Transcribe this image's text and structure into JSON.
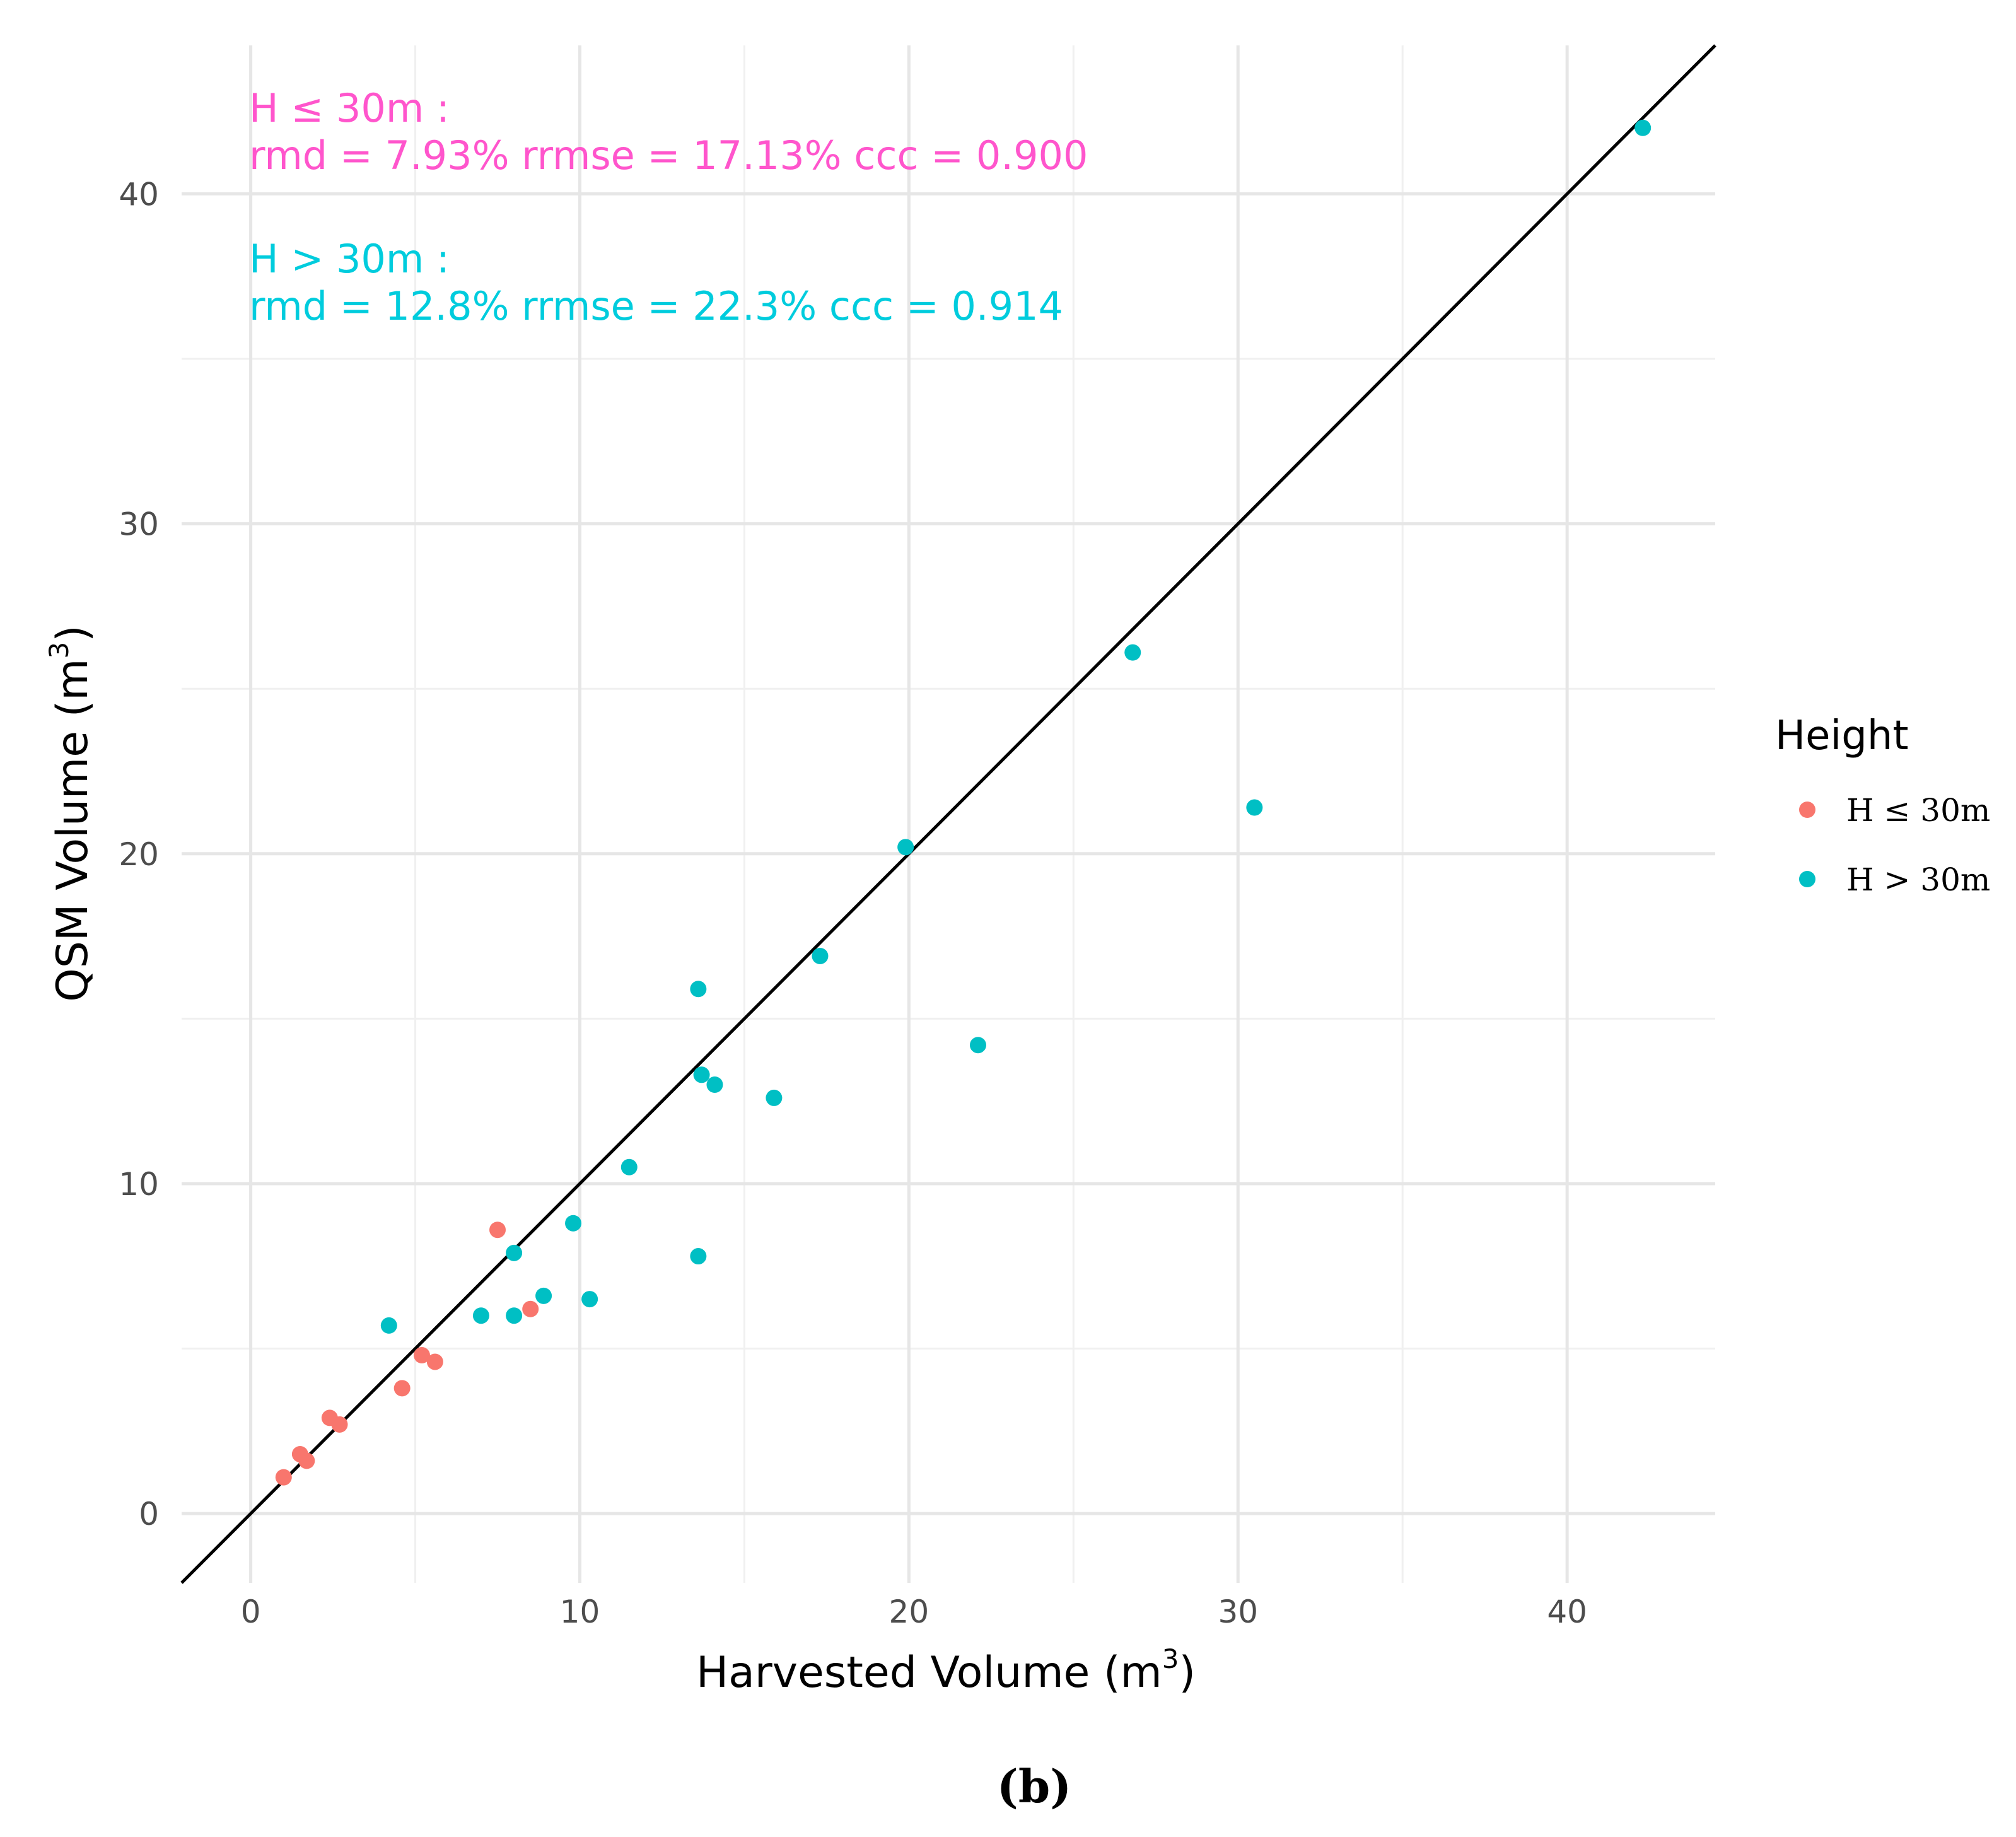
{
  "chart_data": {
    "type": "scatter",
    "title": "",
    "xlabel": "Harvested Volume (m3)",
    "xlabel_main": "Harvested Volume (m",
    "xlabel_close": ")",
    "ylabel": "QSM Volume (m3)",
    "ylabel_main": "QSM Volume (m",
    "ylabel_close": ")",
    "superscript": "3",
    "xlim": [
      -2.1,
      44.5
    ],
    "ylim": [
      -2.1,
      44.5
    ],
    "x_ticks": [
      0,
      10,
      20,
      30,
      40
    ],
    "y_ticks": [
      0,
      10,
      20,
      30,
      40
    ],
    "x_tick_labels": [
      "0",
      "10",
      "20",
      "30",
      "40"
    ],
    "y_tick_labels": [
      "0",
      "10",
      "20",
      "30",
      "40"
    ],
    "grid": true,
    "reference_line": "1:1 line",
    "legend": {
      "title": "Height",
      "placement": "right"
    },
    "series": [
      {
        "name": "H ≤ 30m",
        "color": "#F8766D",
        "x": [
          1.0,
          1.5,
          1.7,
          2.4,
          2.7,
          4.6,
          5.2,
          5.6,
          7.5,
          8.5
        ],
        "y": [
          1.1,
          1.8,
          1.6,
          2.9,
          2.7,
          3.8,
          4.8,
          4.6,
          8.6,
          6.2
        ]
      },
      {
        "name": "H > 30m",
        "color": "#00BFC4",
        "x": [
          4.2,
          7.0,
          8.0,
          8.0,
          8.9,
          9.8,
          10.3,
          11.5,
          13.6,
          13.6,
          13.7,
          14.1,
          15.9,
          17.3,
          19.9,
          22.1,
          26.8,
          30.5,
          42.3
        ],
        "y": [
          5.7,
          6.0,
          6.0,
          7.9,
          6.6,
          8.8,
          6.5,
          10.5,
          7.8,
          15.9,
          13.3,
          13.0,
          12.6,
          16.9,
          20.2,
          14.2,
          26.1,
          21.4,
          42.0
        ]
      }
    ],
    "annotations": [
      {
        "group": "H ≤ 30m",
        "color": "#FF55CC",
        "line1": "H ≤ 30m :",
        "line2": "rmd = 7.93% rrmse = 17.13% ccc = 0.900"
      },
      {
        "group": "H > 30m",
        "color": "#00CCDD",
        "line1": "H > 30m :",
        "line2": "rmd = 12.8% rrmse = 22.3% ccc = 0.914"
      }
    ],
    "panel_label": "(b)"
  }
}
